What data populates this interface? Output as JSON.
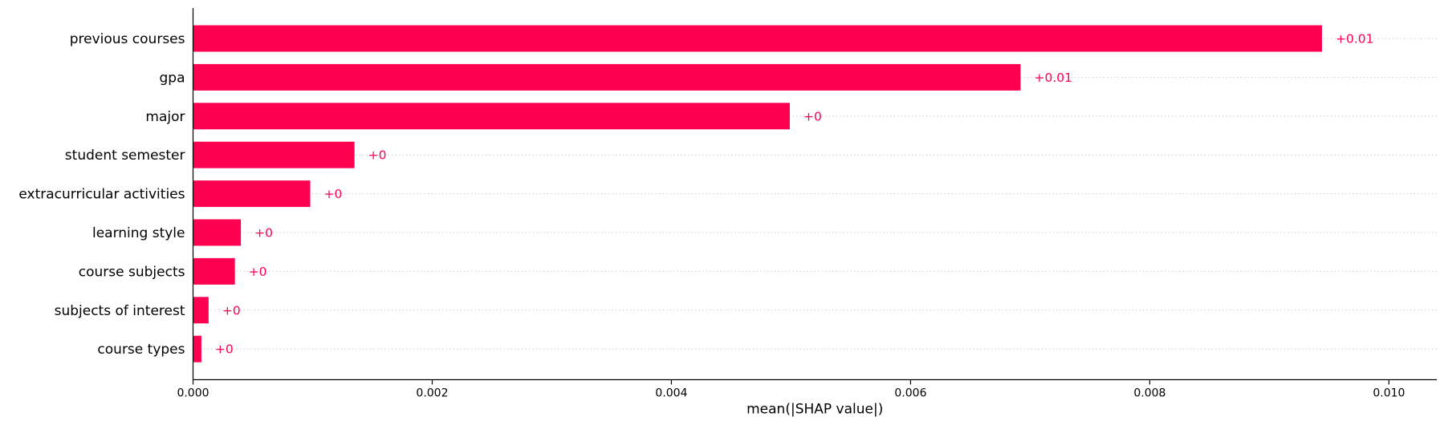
{
  "chart_data": {
    "type": "bar",
    "orientation": "horizontal",
    "categories": [
      "previous courses",
      "gpa",
      "major",
      "student semester",
      "extracurricular activities",
      "learning style",
      "course subjects",
      "subjects of interest",
      "course types"
    ],
    "values": [
      0.00944,
      0.00692,
      0.00499,
      0.00135,
      0.00098,
      0.0004,
      0.00035,
      0.00013,
      7e-05
    ],
    "value_labels": [
      "+0.01",
      "+0.01",
      "+0",
      "+0",
      "+0",
      "+0",
      "+0",
      "+0",
      "+0"
    ],
    "xlabel": "mean(|SHAP value|)",
    "xlim": [
      0.0,
      0.0104
    ],
    "x_ticks": [
      0.0,
      0.002,
      0.004,
      0.006,
      0.008,
      0.01
    ],
    "x_tick_labels": [
      "0.000",
      "0.002",
      "0.004",
      "0.006",
      "0.008",
      "0.010"
    ],
    "grid": "dotted horizontal row guides",
    "colors": {
      "bar": "#ff0051",
      "value_label": "#ff0051",
      "axis": "#000000",
      "guide": "#cccccc"
    }
  }
}
